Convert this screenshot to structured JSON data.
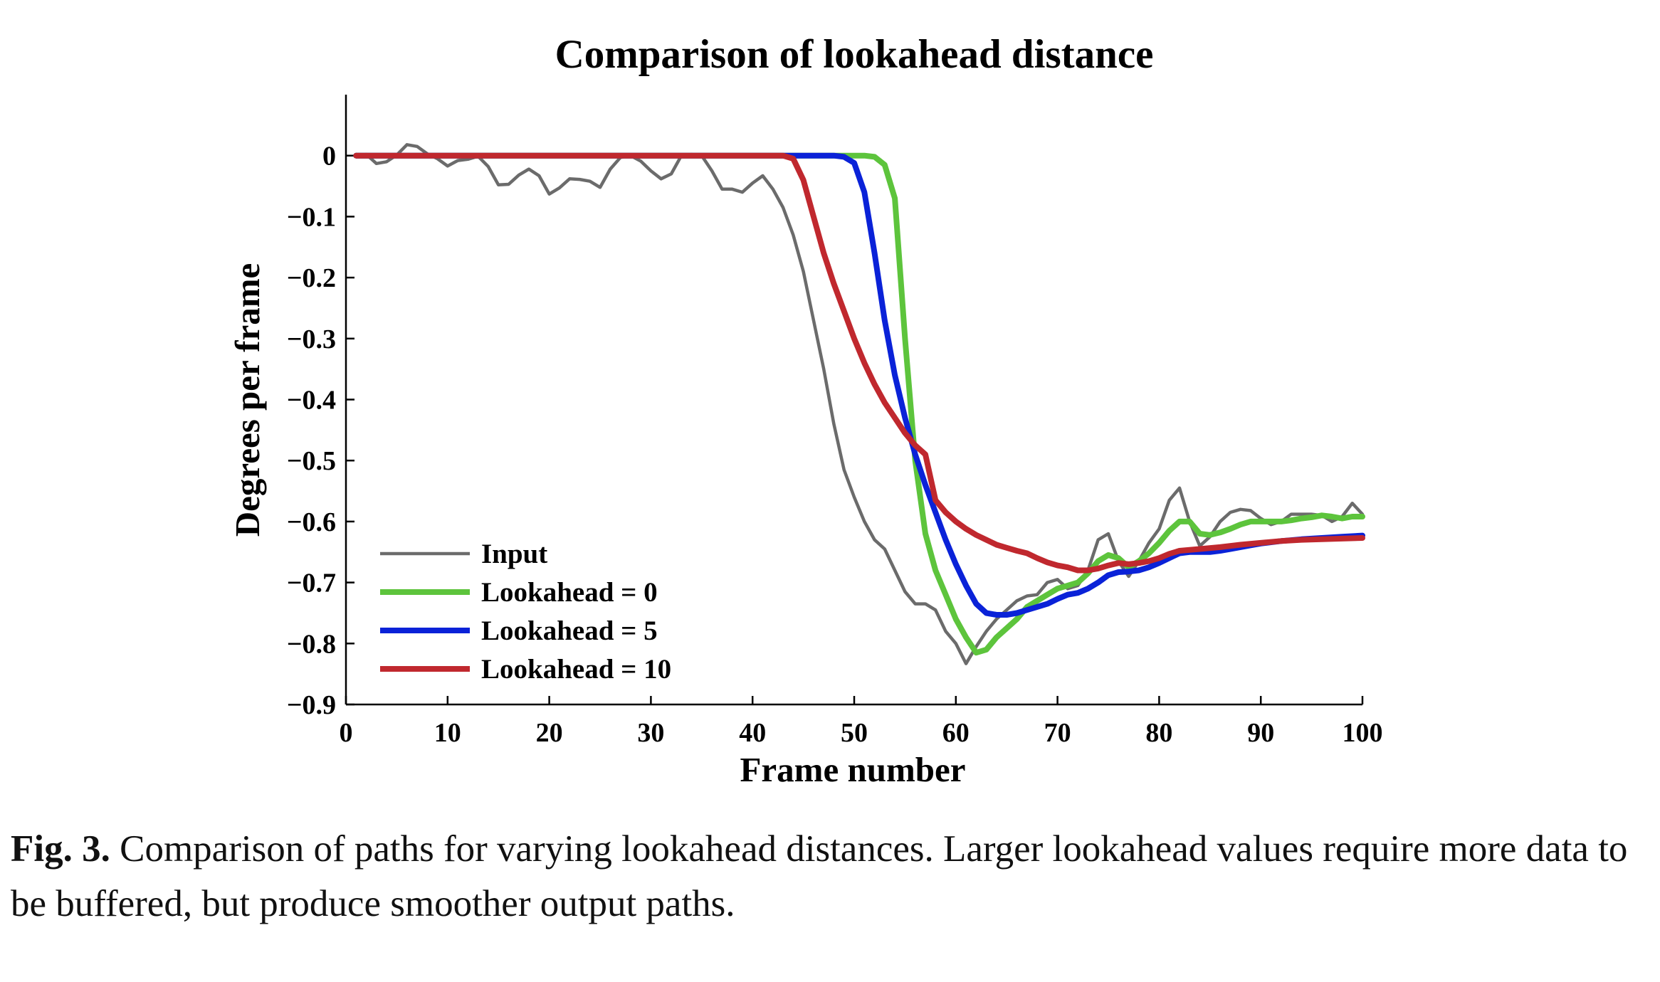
{
  "chart_data": {
    "type": "line",
    "title": "Comparison of lookahead distance",
    "xlabel": "Frame number",
    "ylabel": "Degrees per frame",
    "xlim": [
      0,
      100
    ],
    "ylim": [
      -0.9,
      0.1
    ],
    "xticks": [
      0,
      10,
      20,
      30,
      40,
      50,
      60,
      70,
      80,
      90,
      100
    ],
    "xtick_labels": [
      "0",
      "10",
      "20",
      "30",
      "40",
      "50",
      "60",
      "70",
      "80",
      "90",
      "100"
    ],
    "yticks": [
      0,
      -0.1,
      -0.2,
      -0.3,
      -0.4,
      -0.5,
      -0.6,
      -0.7,
      -0.8,
      -0.9
    ],
    "ytick_labels": [
      "0",
      "−0.1",
      "−0.2",
      "−0.3",
      "−0.4",
      "−0.5",
      "−0.6",
      "−0.7",
      "−0.8",
      "−0.9"
    ],
    "grid": false,
    "legend_position": "lower-left",
    "series": [
      {
        "name": "Input",
        "color": "#6b6b6b",
        "x": [
          1,
          2,
          3,
          4,
          5,
          6,
          7,
          8,
          9,
          10,
          11,
          12,
          13,
          14,
          15,
          16,
          17,
          18,
          19,
          20,
          21,
          22,
          23,
          24,
          25,
          26,
          27,
          28,
          29,
          30,
          31,
          32,
          33,
          34,
          35,
          36,
          37,
          38,
          39,
          40,
          41,
          42,
          43,
          44,
          45,
          46,
          47,
          48,
          49,
          50,
          51,
          52,
          53,
          54,
          55,
          56,
          57,
          58,
          59,
          60,
          61,
          62,
          63,
          64,
          65,
          66,
          67,
          68,
          69,
          70,
          71,
          72,
          73,
          74,
          75,
          76,
          77,
          78,
          79,
          80,
          81,
          82,
          83,
          84,
          85,
          86,
          87,
          88,
          89,
          90,
          91,
          92,
          93,
          94,
          95,
          96,
          97,
          98,
          99,
          100
        ],
        "y": [
          0,
          0.002,
          -0.013,
          -0.01,
          0.001,
          0.018,
          0.015,
          0.003,
          -0.005,
          -0.017,
          -0.008,
          -0.006,
          -0.001,
          -0.018,
          -0.048,
          -0.047,
          -0.032,
          -0.022,
          -0.033,
          -0.063,
          -0.053,
          -0.038,
          -0.039,
          -0.042,
          -0.052,
          -0.022,
          -0.003,
          0.0,
          -0.009,
          -0.025,
          -0.038,
          -0.03,
          0.0,
          0.002,
          0.0,
          -0.025,
          -0.055,
          -0.055,
          -0.06,
          -0.045,
          -0.033,
          -0.055,
          -0.085,
          -0.13,
          -0.19,
          -0.27,
          -0.35,
          -0.44,
          -0.515,
          -0.56,
          -0.6,
          -0.63,
          -0.645,
          -0.68,
          -0.715,
          -0.735,
          -0.735,
          -0.745,
          -0.78,
          -0.8,
          -0.833,
          -0.805,
          -0.78,
          -0.76,
          -0.745,
          -0.73,
          -0.722,
          -0.72,
          -0.7,
          -0.695,
          -0.71,
          -0.705,
          -0.68,
          -0.63,
          -0.62,
          -0.665,
          -0.69,
          -0.665,
          -0.635,
          -0.612,
          -0.565,
          -0.545,
          -0.6,
          -0.64,
          -0.625,
          -0.6,
          -0.585,
          -0.58,
          -0.582,
          -0.595,
          -0.605,
          -0.6,
          -0.588,
          -0.588,
          -0.588,
          -0.59,
          -0.6,
          -0.592,
          -0.57,
          -0.588
        ]
      },
      {
        "name": "Lookahead = 0",
        "color": "#5dc43c",
        "x": [
          1,
          5,
          10,
          20,
          30,
          40,
          45,
          48,
          50,
          51,
          52,
          53,
          54,
          55,
          56,
          57,
          58,
          59,
          60,
          61,
          62,
          63,
          64,
          65,
          66,
          67,
          68,
          69,
          70,
          71,
          72,
          73,
          74,
          75,
          76,
          77,
          78,
          79,
          80,
          81,
          82,
          83,
          84,
          85,
          86,
          87,
          88,
          89,
          90,
          91,
          92,
          93,
          94,
          95,
          96,
          97,
          98,
          99,
          100
        ],
        "y": [
          0,
          0,
          0,
          0,
          0,
          0,
          0,
          0,
          0,
          0,
          -0.002,
          -0.015,
          -0.07,
          -0.3,
          -0.5,
          -0.62,
          -0.68,
          -0.72,
          -0.76,
          -0.79,
          -0.815,
          -0.81,
          -0.79,
          -0.775,
          -0.76,
          -0.74,
          -0.73,
          -0.72,
          -0.71,
          -0.705,
          -0.7,
          -0.685,
          -0.665,
          -0.655,
          -0.66,
          -0.675,
          -0.665,
          -0.652,
          -0.635,
          -0.615,
          -0.6,
          -0.6,
          -0.62,
          -0.622,
          -0.618,
          -0.612,
          -0.605,
          -0.6,
          -0.6,
          -0.6,
          -0.6,
          -0.598,
          -0.595,
          -0.593,
          -0.59,
          -0.592,
          -0.595,
          -0.592,
          -0.592
        ]
      },
      {
        "name": "Lookahead = 5",
        "color": "#0a22d8",
        "x": [
          1,
          5,
          10,
          20,
          30,
          40,
          45,
          47,
          48,
          49,
          50,
          51,
          52,
          53,
          54,
          55,
          56,
          57,
          58,
          59,
          60,
          61,
          62,
          63,
          64,
          65,
          66,
          67,
          68,
          69,
          70,
          71,
          72,
          73,
          74,
          75,
          76,
          77,
          78,
          79,
          80,
          81,
          82,
          83,
          84,
          85,
          86,
          87,
          88,
          89,
          90,
          92,
          94,
          96,
          98,
          100
        ],
        "y": [
          0,
          0,
          0,
          0,
          0,
          0,
          0,
          0,
          0,
          -0.002,
          -0.012,
          -0.06,
          -0.16,
          -0.27,
          -0.36,
          -0.43,
          -0.49,
          -0.54,
          -0.585,
          -0.63,
          -0.67,
          -0.705,
          -0.735,
          -0.75,
          -0.753,
          -0.753,
          -0.75,
          -0.745,
          -0.74,
          -0.735,
          -0.727,
          -0.72,
          -0.717,
          -0.71,
          -0.7,
          -0.688,
          -0.683,
          -0.682,
          -0.68,
          -0.675,
          -0.668,
          -0.66,
          -0.652,
          -0.65,
          -0.65,
          -0.65,
          -0.648,
          -0.645,
          -0.642,
          -0.639,
          -0.636,
          -0.632,
          -0.629,
          -0.627,
          -0.625,
          -0.623
        ]
      },
      {
        "name": "Lookahead = 10",
        "color": "#c0282e",
        "x": [
          1,
          5,
          10,
          20,
          30,
          40,
          42,
          43,
          44,
          45,
          46,
          47,
          48,
          49,
          50,
          51,
          52,
          53,
          54,
          55,
          56,
          57,
          58,
          59,
          60,
          61,
          62,
          63,
          64,
          65,
          66,
          67,
          68,
          69,
          70,
          71,
          72,
          73,
          74,
          75,
          76,
          77,
          78,
          79,
          80,
          81,
          82,
          84,
          86,
          88,
          90,
          92,
          94,
          96,
          98,
          100
        ],
        "y": [
          0,
          0,
          0,
          0,
          0,
          0,
          0,
          0,
          -0.005,
          -0.04,
          -0.1,
          -0.16,
          -0.21,
          -0.255,
          -0.3,
          -0.34,
          -0.375,
          -0.405,
          -0.43,
          -0.455,
          -0.475,
          -0.49,
          -0.565,
          -0.585,
          -0.6,
          -0.612,
          -0.622,
          -0.63,
          -0.638,
          -0.643,
          -0.648,
          -0.652,
          -0.66,
          -0.667,
          -0.672,
          -0.675,
          -0.68,
          -0.68,
          -0.677,
          -0.672,
          -0.668,
          -0.67,
          -0.668,
          -0.665,
          -0.66,
          -0.653,
          -0.648,
          -0.645,
          -0.642,
          -0.638,
          -0.635,
          -0.632,
          -0.63,
          -0.629,
          -0.628,
          -0.627
        ]
      }
    ]
  },
  "caption": {
    "label": "Fig. 3.",
    "text": " Comparison of paths for varying lookahead distances. Larger lookahead values require more data to be buffered, but produce smoother output paths."
  }
}
